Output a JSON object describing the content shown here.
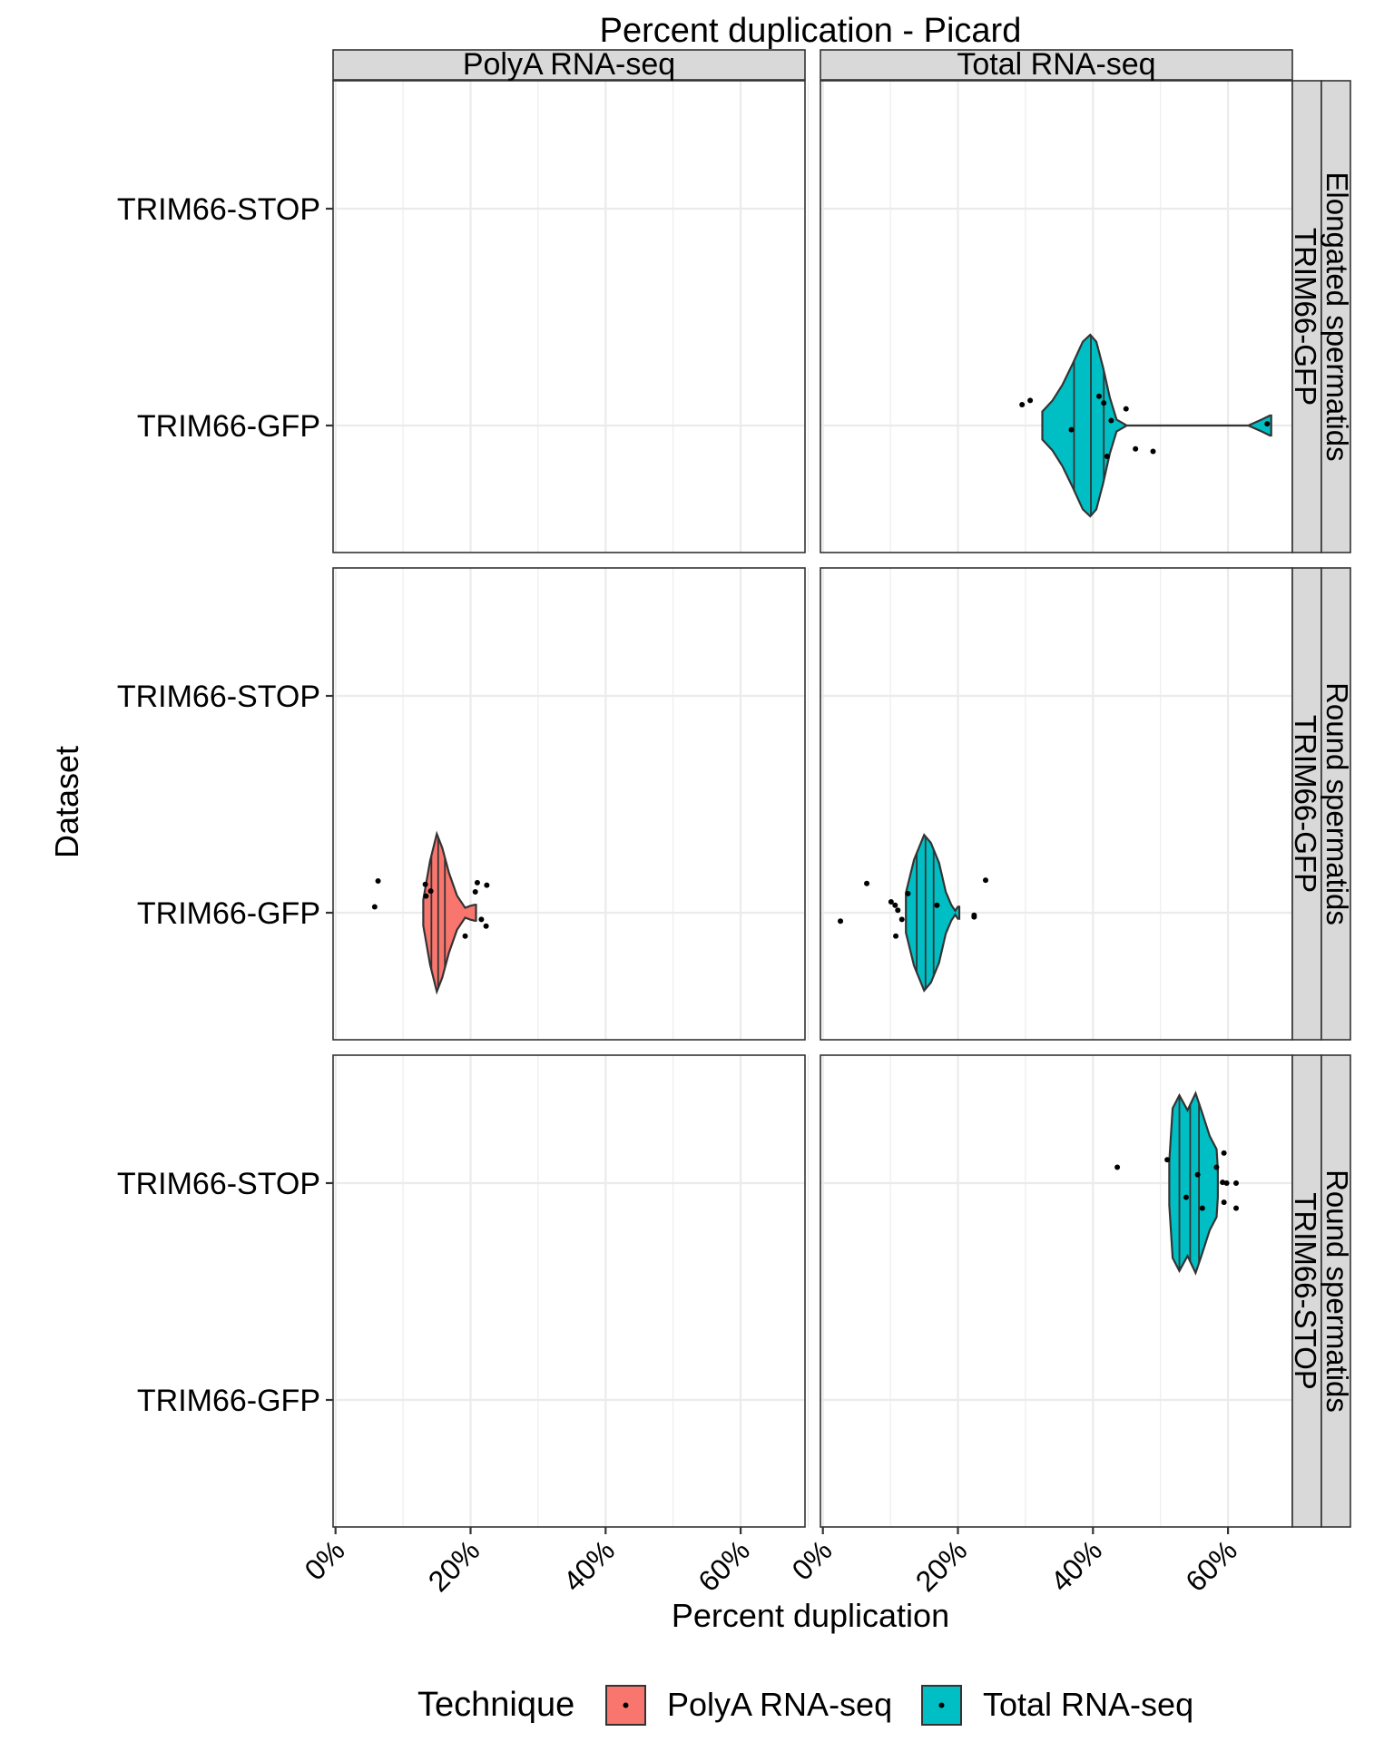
{
  "chart_data": {
    "type": "violin",
    "title": "Percent duplication - Picard",
    "xlabel": "Percent duplication",
    "ylabel": "Dataset",
    "xlim": [
      0,
      70
    ],
    "x_ticks": [
      0,
      20,
      40,
      60
    ],
    "x_tick_labels": [
      "0%",
      "20%",
      "40%",
      "60%"
    ],
    "y_categories": [
      "TRIM66-STOP",
      "TRIM66-GFP"
    ],
    "columns": [
      "PolyA RNA-seq",
      "Total RNA-seq"
    ],
    "rows": [
      {
        "label": "Elongated spermatids\nTRIM66-GFP"
      },
      {
        "label": "Round spermatids\nTRIM66-GFP"
      },
      {
        "label": "Round spermatids\nTRIM66-STOP"
      }
    ],
    "legend": {
      "title": "Technique",
      "position": "bottom",
      "items": [
        {
          "label": "PolyA RNA-seq",
          "color": "#F8766D"
        },
        {
          "label": "Total RNA-seq",
          "color": "#00BFC4"
        }
      ]
    },
    "violins": [
      {
        "row": 0,
        "column": "Total RNA-seq",
        "category": "TRIM66-GFP",
        "profile": [
          [
            32.5,
            0.14
          ],
          [
            34,
            0.25
          ],
          [
            35.5,
            0.41
          ],
          [
            37,
            0.62
          ],
          [
            38.5,
            0.84
          ],
          [
            39.6,
            0.91
          ],
          [
            40.5,
            0.84
          ],
          [
            41.5,
            0.58
          ],
          [
            42.5,
            0.28
          ],
          [
            43.5,
            0.06
          ],
          [
            45,
            0.0
          ],
          [
            63,
            0.0
          ],
          [
            65,
            0.06
          ],
          [
            66.2,
            0.1
          ],
          [
            66.4,
            0.1
          ]
        ],
        "quantiles": [
          37.2,
          39.7,
          41.6
        ],
        "points": [
          [
            29.5,
            0.25
          ],
          [
            30.7,
            0.3
          ],
          [
            40.9,
            0.35
          ],
          [
            41.6,
            0.27
          ],
          [
            42.7,
            0.06
          ],
          [
            44.9,
            0.2
          ],
          [
            36.8,
            -0.05
          ],
          [
            46.3,
            -0.28
          ],
          [
            48.9,
            -0.31
          ],
          [
            42.1,
            -0.37
          ],
          [
            65.8,
            0.02
          ]
        ]
      },
      {
        "row": 1,
        "column": "PolyA RNA-seq",
        "category": "TRIM66-GFP",
        "profile": [
          [
            13,
            0.13
          ],
          [
            14,
            0.52
          ],
          [
            15,
            0.79
          ],
          [
            15.8,
            0.65
          ],
          [
            16.8,
            0.4
          ],
          [
            18,
            0.17
          ],
          [
            19.2,
            0.05
          ],
          [
            20,
            0.07
          ],
          [
            20.6,
            0.08
          ],
          [
            20.8,
            0.08
          ]
        ],
        "quantiles": [
          14.2,
          15.2,
          16.2
        ],
        "points": [
          [
            6.3,
            0.38
          ],
          [
            13.3,
            0.34
          ],
          [
            14.1,
            0.26
          ],
          [
            13.4,
            0.2
          ],
          [
            21,
            0.36
          ],
          [
            22.4,
            0.33
          ],
          [
            20.7,
            0.25
          ],
          [
            5.8,
            0.07
          ],
          [
            21.6,
            -0.08
          ],
          [
            22.3,
            -0.16
          ],
          [
            19.2,
            -0.28
          ]
        ]
      },
      {
        "row": 1,
        "column": "Total RNA-seq",
        "category": "TRIM66-GFP",
        "profile": [
          [
            12.3,
            0.2
          ],
          [
            13.5,
            0.53
          ],
          [
            15,
            0.78
          ],
          [
            16,
            0.7
          ],
          [
            17.2,
            0.5
          ],
          [
            18.2,
            0.21
          ],
          [
            19,
            0.08
          ],
          [
            19.6,
            0.02
          ],
          [
            20,
            0.06
          ],
          [
            20.2,
            0.06
          ]
        ],
        "quantiles": [
          13.9,
          15.2,
          16.4
        ],
        "points": [
          [
            6.5,
            0.35
          ],
          [
            24.1,
            0.39
          ],
          [
            12.6,
            0.23
          ],
          [
            10.1,
            0.13
          ],
          [
            10.7,
            0.09
          ],
          [
            16.9,
            0.09
          ],
          [
            11.1,
            0.03
          ],
          [
            22.4,
            -0.03
          ],
          [
            22.4,
            -0.05
          ],
          [
            11.7,
            -0.08
          ],
          [
            2.6,
            -0.1
          ],
          [
            10.8,
            -0.28
          ]
        ]
      },
      {
        "row": 2,
        "column": "Total RNA-seq",
        "category": "TRIM66-STOP",
        "profile": [
          [
            51.3,
            0.22
          ],
          [
            51.8,
            0.75
          ],
          [
            52.8,
            0.88
          ],
          [
            54,
            0.73
          ],
          [
            55.2,
            0.9
          ],
          [
            56.1,
            0.72
          ],
          [
            57.3,
            0.47
          ],
          [
            58.3,
            0.34
          ],
          [
            58.5,
            0.14
          ]
        ],
        "quantiles": [
          52.8,
          54.4,
          55.7
        ],
        "points": [
          [
            59.4,
            0.36
          ],
          [
            51,
            0.28
          ],
          [
            43.6,
            0.19
          ],
          [
            58.3,
            0.19
          ],
          [
            55.5,
            0.1
          ],
          [
            59.2,
            0.01
          ],
          [
            59.8,
            0.0
          ],
          [
            61.2,
            0.0
          ],
          [
            53.8,
            -0.17
          ],
          [
            59.4,
            -0.23
          ],
          [
            56.2,
            -0.3
          ],
          [
            61.2,
            -0.3
          ]
        ]
      }
    ]
  }
}
